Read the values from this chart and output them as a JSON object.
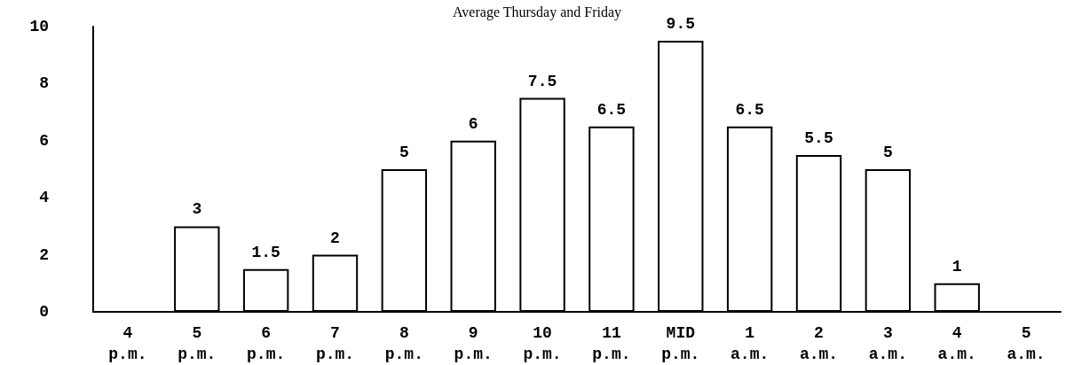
{
  "chart_data": {
    "type": "bar",
    "title": "Average Thursday and Friday",
    "categories": [
      "4\np.m.",
      "5\np.m.",
      "6\np.m.",
      "7\np.m.",
      "8\np.m.",
      "9\np.m.",
      "10\np.m.",
      "11\np.m.",
      "MID\np.m.",
      "1\na.m.",
      "2\na.m.",
      "3\na.m.",
      "4\na.m.",
      "5\na.m."
    ],
    "values": [
      null,
      3,
      1.5,
      2,
      5,
      6,
      7.5,
      6.5,
      9.5,
      6.5,
      5.5,
      5,
      1,
      null
    ],
    "color": "#ffffff",
    "ylim": [
      0,
      10
    ],
    "yticks": [
      0,
      2,
      4,
      6,
      8,
      10
    ],
    "grid": false,
    "data_labels": true
  }
}
